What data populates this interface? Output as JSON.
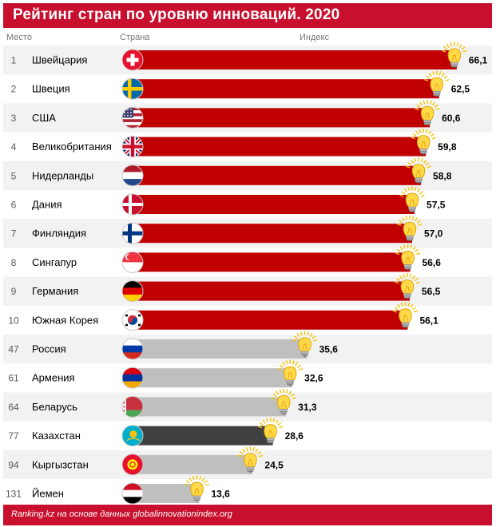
{
  "header": {
    "title": "Рейтинг стран по уровню инноваций. 2020",
    "col_place": "Место",
    "col_country": "Страна",
    "col_index": "Индекс"
  },
  "footer": {
    "source": "Ranking.kz на основе данных globalinnovationindex.org"
  },
  "colors": {
    "brand": "#c8102e",
    "top_bar": "#c00000",
    "other_bar": "#bfbfbf",
    "highlight_bar": "#404040"
  },
  "chart_data": {
    "type": "bar",
    "orientation": "horizontal",
    "title": "Рейтинг стран по уровню инноваций. 2020",
    "xlabel": "Индекс",
    "ylabel": "Страна",
    "xlim": [
      0,
      70
    ],
    "categories": [
      "Швейцария",
      "Швеция",
      "США",
      "Великобритания",
      "Нидерланды",
      "Дания",
      "Финляндия",
      "Сингапур",
      "Германия",
      "Южная Корея",
      "Россия",
      "Армения",
      "Беларусь",
      "Казахстан",
      "Кыргызстан",
      "Йемен"
    ],
    "ranks": [
      "1",
      "2",
      "3",
      "4",
      "5",
      "6",
      "7",
      "8",
      "9",
      "10",
      "47",
      "61",
      "64",
      "77",
      "94",
      "131"
    ],
    "values": [
      66.1,
      62.5,
      60.6,
      59.8,
      58.8,
      57.5,
      57.0,
      56.6,
      56.5,
      56.1,
      35.6,
      32.6,
      31.3,
      28.6,
      24.5,
      13.6
    ],
    "labels": [
      "66,1",
      "62,5",
      "60,6",
      "59,8",
      "58,8",
      "57,5",
      "57,0",
      "56,6",
      "56,5",
      "56,1",
      "35,6",
      "32,6",
      "31,3",
      "28,6",
      "24,5",
      "13,6"
    ],
    "bar_groups": [
      "top",
      "top",
      "top",
      "top",
      "top",
      "top",
      "top",
      "top",
      "top",
      "top",
      "other",
      "other",
      "other",
      "highlight",
      "other",
      "other"
    ],
    "flags": [
      "switzerland",
      "sweden",
      "usa",
      "uk",
      "netherlands",
      "denmark",
      "finland",
      "singapore",
      "germany",
      "south-korea",
      "russia",
      "armenia",
      "belarus",
      "kazakhstan",
      "kyrgyzstan",
      "yemen"
    ],
    "marker_icon": "lightbulb-icon"
  }
}
